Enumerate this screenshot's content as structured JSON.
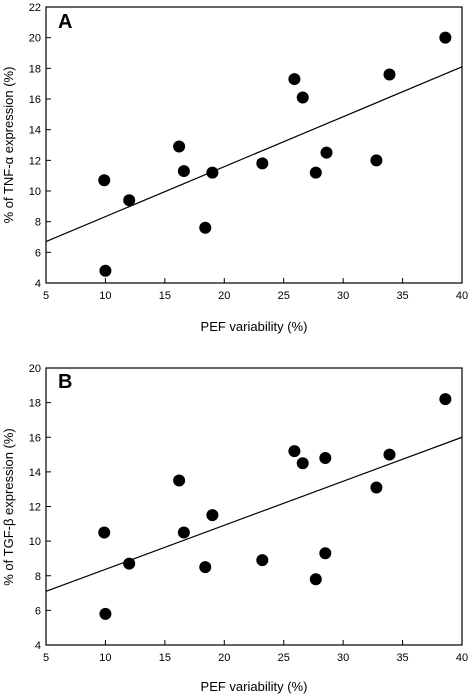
{
  "chart_data": [
    {
      "type": "scatter",
      "panel": "A",
      "xlabel": "PEF variability (%)",
      "ylabel": "% of TNF-α expression (%)",
      "xlim": [
        5,
        40
      ],
      "ylim": [
        4,
        22
      ],
      "xticks": [
        5,
        10,
        15,
        20,
        25,
        30,
        35,
        40
      ],
      "yticks": [
        4,
        6,
        8,
        10,
        12,
        14,
        16,
        18,
        20,
        22
      ],
      "grid": false,
      "points": [
        {
          "x": 9.9,
          "y": 10.7
        },
        {
          "x": 10.0,
          "y": 4.8
        },
        {
          "x": 12.0,
          "y": 9.4
        },
        {
          "x": 16.2,
          "y": 12.9
        },
        {
          "x": 16.6,
          "y": 11.3
        },
        {
          "x": 18.4,
          "y": 7.6
        },
        {
          "x": 19.0,
          "y": 11.2
        },
        {
          "x": 23.2,
          "y": 11.8
        },
        {
          "x": 25.9,
          "y": 17.3
        },
        {
          "x": 26.6,
          "y": 16.1
        },
        {
          "x": 27.7,
          "y": 11.2
        },
        {
          "x": 28.6,
          "y": 12.5
        },
        {
          "x": 32.8,
          "y": 12.0
        },
        {
          "x": 33.9,
          "y": 17.6
        },
        {
          "x": 38.6,
          "y": 20.0
        }
      ],
      "trendline": {
        "x": [
          5,
          40
        ],
        "y": [
          6.7,
          18.1
        ]
      }
    },
    {
      "type": "scatter",
      "panel": "B",
      "xlabel": "PEF variability (%)",
      "ylabel": "% of TGF-β expression (%)",
      "xlim": [
        5,
        40
      ],
      "ylim": [
        4,
        20
      ],
      "xticks": [
        5,
        10,
        15,
        20,
        25,
        30,
        35,
        40
      ],
      "yticks": [
        4,
        6,
        8,
        10,
        12,
        14,
        16,
        18,
        20
      ],
      "grid": false,
      "points": [
        {
          "x": 9.9,
          "y": 10.5
        },
        {
          "x": 10.0,
          "y": 5.8
        },
        {
          "x": 12.0,
          "y": 8.7
        },
        {
          "x": 16.2,
          "y": 13.5
        },
        {
          "x": 16.6,
          "y": 10.5
        },
        {
          "x": 18.4,
          "y": 8.5
        },
        {
          "x": 19.0,
          "y": 11.5
        },
        {
          "x": 23.2,
          "y": 8.9
        },
        {
          "x": 25.9,
          "y": 15.2
        },
        {
          "x": 26.6,
          "y": 14.5
        },
        {
          "x": 27.7,
          "y": 7.8
        },
        {
          "x": 28.5,
          "y": 14.8
        },
        {
          "x": 28.5,
          "y": 9.3
        },
        {
          "x": 32.8,
          "y": 13.1
        },
        {
          "x": 33.9,
          "y": 15.0
        },
        {
          "x": 38.6,
          "y": 18.2
        }
      ],
      "trendline": {
        "x": [
          5,
          40
        ],
        "y": [
          7.1,
          16.0
        ]
      }
    }
  ]
}
